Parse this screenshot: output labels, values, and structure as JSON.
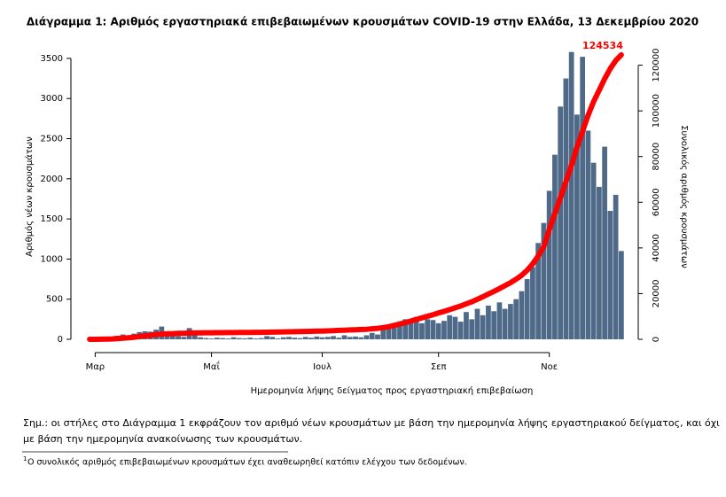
{
  "chart_data": {
    "type": "bar-line",
    "title": "Διάγραμμα 1: Αριθμός εργαστηριακά επιβεβαιωμένων κρουσμάτων COVID-19 στην Ελλάδα, 13 Δεκεμβρίου 2020",
    "x_label": "Ημερομηνία λήψης δείγματος προς εργαστηριακή επιβεβαίωση",
    "y_label": "Αριθμός νέων κρουσμάτων",
    "y2_label": "Συνολικός αριθμός κρουσμάτων",
    "categories": [
      null,
      "Μαρ",
      null,
      null,
      null,
      null,
      null,
      null,
      null,
      null,
      null,
      null,
      null,
      null,
      null,
      null,
      null,
      null,
      null,
      null,
      null,
      null,
      "Μαΐ",
      null,
      null,
      null,
      null,
      null,
      null,
      null,
      null,
      null,
      null,
      null,
      null,
      null,
      null,
      null,
      null,
      null,
      null,
      null,
      "Ιουλ",
      null,
      null,
      null,
      null,
      null,
      null,
      null,
      null,
      null,
      null,
      null,
      null,
      null,
      null,
      null,
      null,
      null,
      null,
      null,
      null,
      "Σεπ",
      null,
      null,
      null,
      null,
      null,
      null,
      null,
      null,
      null,
      null,
      null,
      null,
      null,
      null,
      null,
      null,
      null,
      null,
      null,
      "Νοε",
      null,
      null,
      null,
      null,
      null,
      null,
      null,
      null,
      null,
      null,
      null,
      null,
      null
    ],
    "series": [
      {
        "color": "#4e6a88",
        "values": [
          1,
          3,
          10,
          30,
          20,
          45,
          60,
          35,
          70,
          90,
          100,
          95,
          120,
          159,
          60,
          70,
          40,
          30,
          140,
          60,
          25,
          15,
          10,
          20,
          15,
          10,
          25,
          15,
          12,
          20,
          10,
          15,
          40,
          30,
          10,
          25,
          30,
          20,
          15,
          30,
          20,
          35,
          25,
          30,
          40,
          20,
          50,
          30,
          35,
          25,
          50,
          80,
          60,
          120,
          150,
          200,
          180,
          250,
          220,
          280,
          200,
          250,
          240,
          200,
          230,
          300,
          280,
          220,
          340,
          250,
          380,
          300,
          420,
          350,
          460,
          380,
          440,
          500,
          600,
          750,
          900,
          1200,
          1450,
          1850,
          2300,
          2900,
          3250,
          3580,
          2800,
          3520,
          2600,
          2200,
          1900,
          2400,
          1600,
          1800,
          1100
        ]
      },
      {
        "color": "#ff0000",
        "axis": "y2",
        "values": [
          3,
          7,
          40,
          90,
          160,
          300,
          500,
          700,
          900,
          1200,
          1500,
          1800,
          2100,
          2300,
          2400,
          2500,
          2600,
          2650,
          2750,
          2800,
          2850,
          2870,
          2880,
          2900,
          2920,
          2940,
          2960,
          2980,
          3000,
          3020,
          3050,
          3080,
          3120,
          3150,
          3200,
          3250,
          3300,
          3350,
          3400,
          3450,
          3500,
          3550,
          3600,
          3700,
          3800,
          3900,
          4000,
          4100,
          4200,
          4300,
          4400,
          4600,
          4800,
          5100,
          5500,
          6100,
          6700,
          7300,
          8000,
          8700,
          9400,
          10100,
          10800,
          11500,
          12200,
          13000,
          13800,
          14600,
          15500,
          16400,
          17500,
          18600,
          19800,
          21000,
          22200,
          23500,
          24800,
          26300,
          28000,
          30200,
          33000,
          36500,
          40500,
          48000,
          55000,
          62000,
          69000,
          76000,
          84000,
          91000,
          98000,
          104000,
          109000,
          114000,
          118500,
          122000,
          124534
        ]
      }
    ],
    "ylim": [
      0,
      3700
    ],
    "yticks": [
      0,
      500,
      1000,
      1500,
      2000,
      2500,
      3000,
      3500
    ],
    "y2lim": [
      0,
      130000
    ],
    "y2ticks": [
      0,
      20000,
      40000,
      60000,
      80000,
      100000,
      120000
    ]
  },
  "notes": [
    "Σημ.: οι στήλες στο Διάγραμμα 1 εκφράζουν τον αριθμό νέων κρουσμάτων με βάση την ημερομηνία λήψης εργαστηριακού δείγματος, και όχι",
    "με βάση την ημερομηνία ανακοίνωσης των κρουσμάτων."
  ],
  "footnote": {
    "marker": "1",
    "text": "Ο συνολικός αριθμός επιβεβαιωμένων κρουσμάτων έχει αναθεωρηθεί κατόπιν ελέγχου των δεδομένων."
  }
}
